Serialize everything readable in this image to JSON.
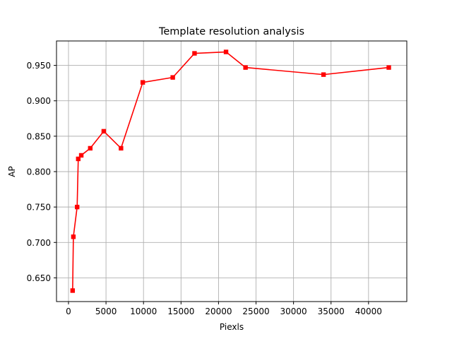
{
  "chart_data": {
    "type": "line",
    "title": "Template resolution analysis",
    "xlabel": "Piexls",
    "ylabel": "AP",
    "xlim": [
      -1600,
      45100
    ],
    "ylim": [
      0.6165,
      0.9845
    ],
    "xticks": [
      0,
      5000,
      10000,
      15000,
      20000,
      25000,
      30000,
      35000,
      40000
    ],
    "yticks": [
      0.65,
      0.7,
      0.75,
      0.8,
      0.85,
      0.9,
      0.95
    ],
    "ytick_labels": [
      "0.650",
      "0.700",
      "0.750",
      "0.800",
      "0.850",
      "0.900",
      "0.950"
    ],
    "grid": true,
    "series": [
      {
        "color": "#ff0000",
        "marker": "square",
        "x": [
          550,
          650,
          1150,
          1300,
          1700,
          2900,
          4700,
          7000,
          9900,
          13900,
          16800,
          21000,
          23600,
          34000,
          42700
        ],
        "y": [
          0.632,
          0.708,
          0.75,
          0.818,
          0.823,
          0.833,
          0.857,
          0.833,
          0.926,
          0.933,
          0.967,
          0.969,
          0.947,
          0.937,
          0.947
        ]
      }
    ]
  }
}
